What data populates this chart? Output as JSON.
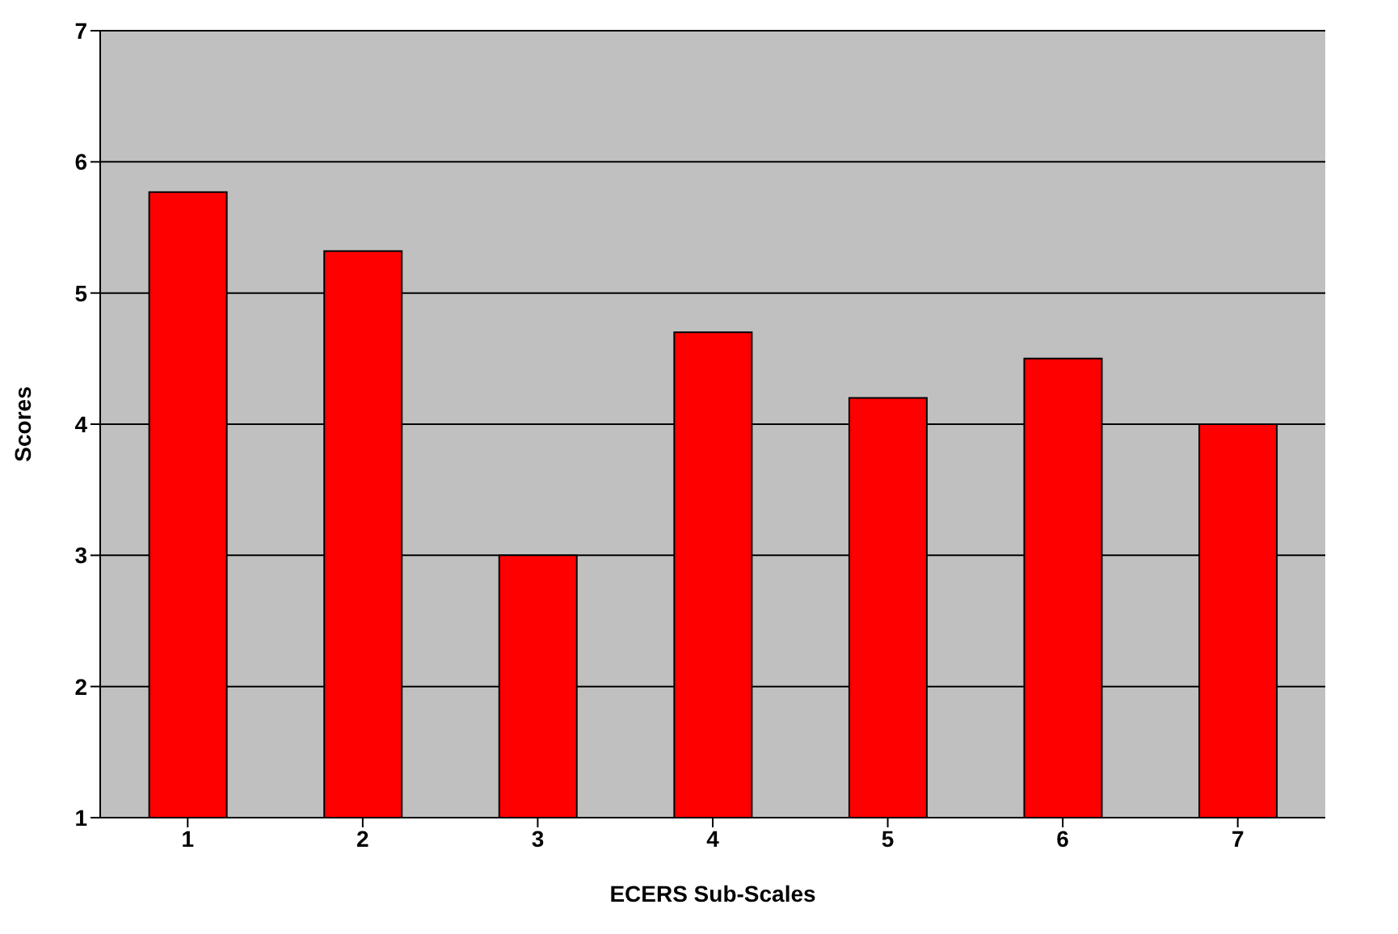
{
  "chart_data": {
    "type": "bar",
    "xlabel": "ECERS Sub-Scales",
    "ylabel": "Scores",
    "categories": [
      "1",
      "2",
      "3",
      "4",
      "5",
      "6",
      "7"
    ],
    "values": [
      5.77,
      5.32,
      3.0,
      4.7,
      4.2,
      4.5,
      4.0
    ],
    "color": "#ff0000",
    "ylim": [
      1,
      7
    ],
    "yticks": [
      1,
      2,
      3,
      4,
      5,
      6,
      7
    ],
    "grid": "y"
  }
}
